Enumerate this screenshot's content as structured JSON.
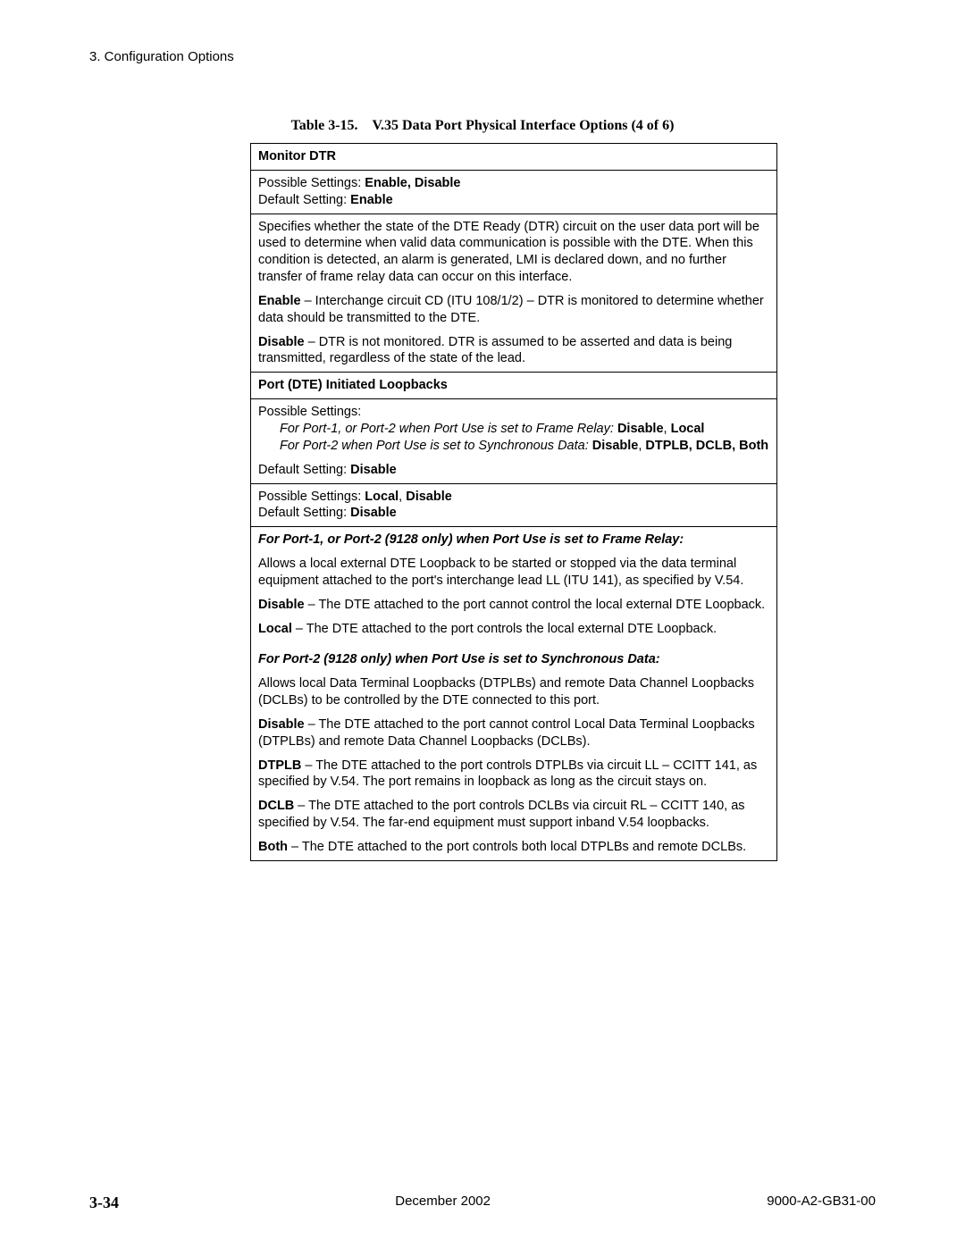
{
  "header": "3. Configuration Options",
  "caption": "Table 3-15. V.35 Data Port Physical Interface Options (4 of 6)",
  "row1_title": "Monitor DTR",
  "row2_possible_label": "Possible Settings: ",
  "row2_possible_value": "Enable, Disable",
  "row2_default_label": "Default Setting: ",
  "row2_default_value": "Enable",
  "row3_p1": "Specifies whether the state of the DTE Ready (DTR) circuit on the user data port will be used to determine when valid data communication is possible with the DTE. When this condition is detected, an alarm is generated, LMI is declared down, and no further transfer of frame relay data can occur on this interface.",
  "row3_p2a": "Enable",
  "row3_p2b": " – Interchange circuit CD (ITU 108/1/2) – DTR is monitored to determine whether data should be transmitted to the DTE.",
  "row3_p3a": "Disable",
  "row3_p3b": " – DTR is not monitored. DTR is assumed to be asserted and data is being transmitted, regardless of the state of the lead.",
  "row4_title": "Port (DTE) Initiated Loopbacks",
  "row5_possible": "Possible Settings:",
  "row5_line1a": "For Port-1, or Port-2 when Port Use is set to Frame Relay: ",
  "row5_line1b": "Disable",
  "row5_line1c": ", ",
  "row5_line1d": "Local",
  "row5_line2a": "For Port-2 when Port Use is set to Synchronous Data: ",
  "row5_line2b": "Disable",
  "row5_line2c": ", ",
  "row5_line2d": "DTPLB, DCLB, Both",
  "row5_default_label": "Default Setting: ",
  "row5_default_value": "Disable",
  "row6_possible_label": "Possible Settings: ",
  "row6_possible_value": "Local",
  "row6_possible_sep": ", ",
  "row6_possible_value2": "Disable",
  "row6_default_label": "Default Setting: ",
  "row6_default_value": "Disable",
  "row7_h1": "For Port-1, or Port-2 (9128 only) when Port Use is set to Frame Relay:",
  "row7_p1": "Allows a local external DTE Loopback to be started or stopped via the data terminal equipment attached to the port's interchange lead LL (ITU 141), as specified by V.54.",
  "row7_p2a": "Disable",
  "row7_p2b": " – The DTE attached to the port cannot control the local external DTE Loopback.",
  "row7_p3a": "Local",
  "row7_p3b": " – The DTE attached to the port controls the local external DTE Loopback.",
  "row7_h2": "For Port-2 (9128 only) when Port Use is set to Synchronous Data:",
  "row7_p4": "Allows local Data Terminal Loopbacks (DTPLBs) and remote Data Channel Loopbacks (DCLBs) to be controlled by the DTE connected to this port.",
  "row7_p5a": "Disable",
  "row7_p5b": " – The DTE attached to the port cannot control Local Data Terminal Loopbacks (DTPLBs) and remote Data Channel Loopbacks (DCLBs).",
  "row7_p6a": "DTPLB",
  "row7_p6b": " – The DTE attached to the port controls DTPLBs via circuit LL – CCITT 141, as specified by V.54. The port remains in loopback as long as the circuit stays on.",
  "row7_p7a": "DCLB",
  "row7_p7b": " – The DTE attached to the port controls DCLBs via circuit RL – CCITT 140, as specified by V.54. The far-end equipment must support inband V.54 loopbacks.",
  "row7_p8a": "Both",
  "row7_p8b": " – The DTE attached to the port controls both local DTPLBs and remote DCLBs.",
  "footer_page": "3-34",
  "footer_center": "December 2002",
  "footer_right": "9000-A2-GB31-00"
}
